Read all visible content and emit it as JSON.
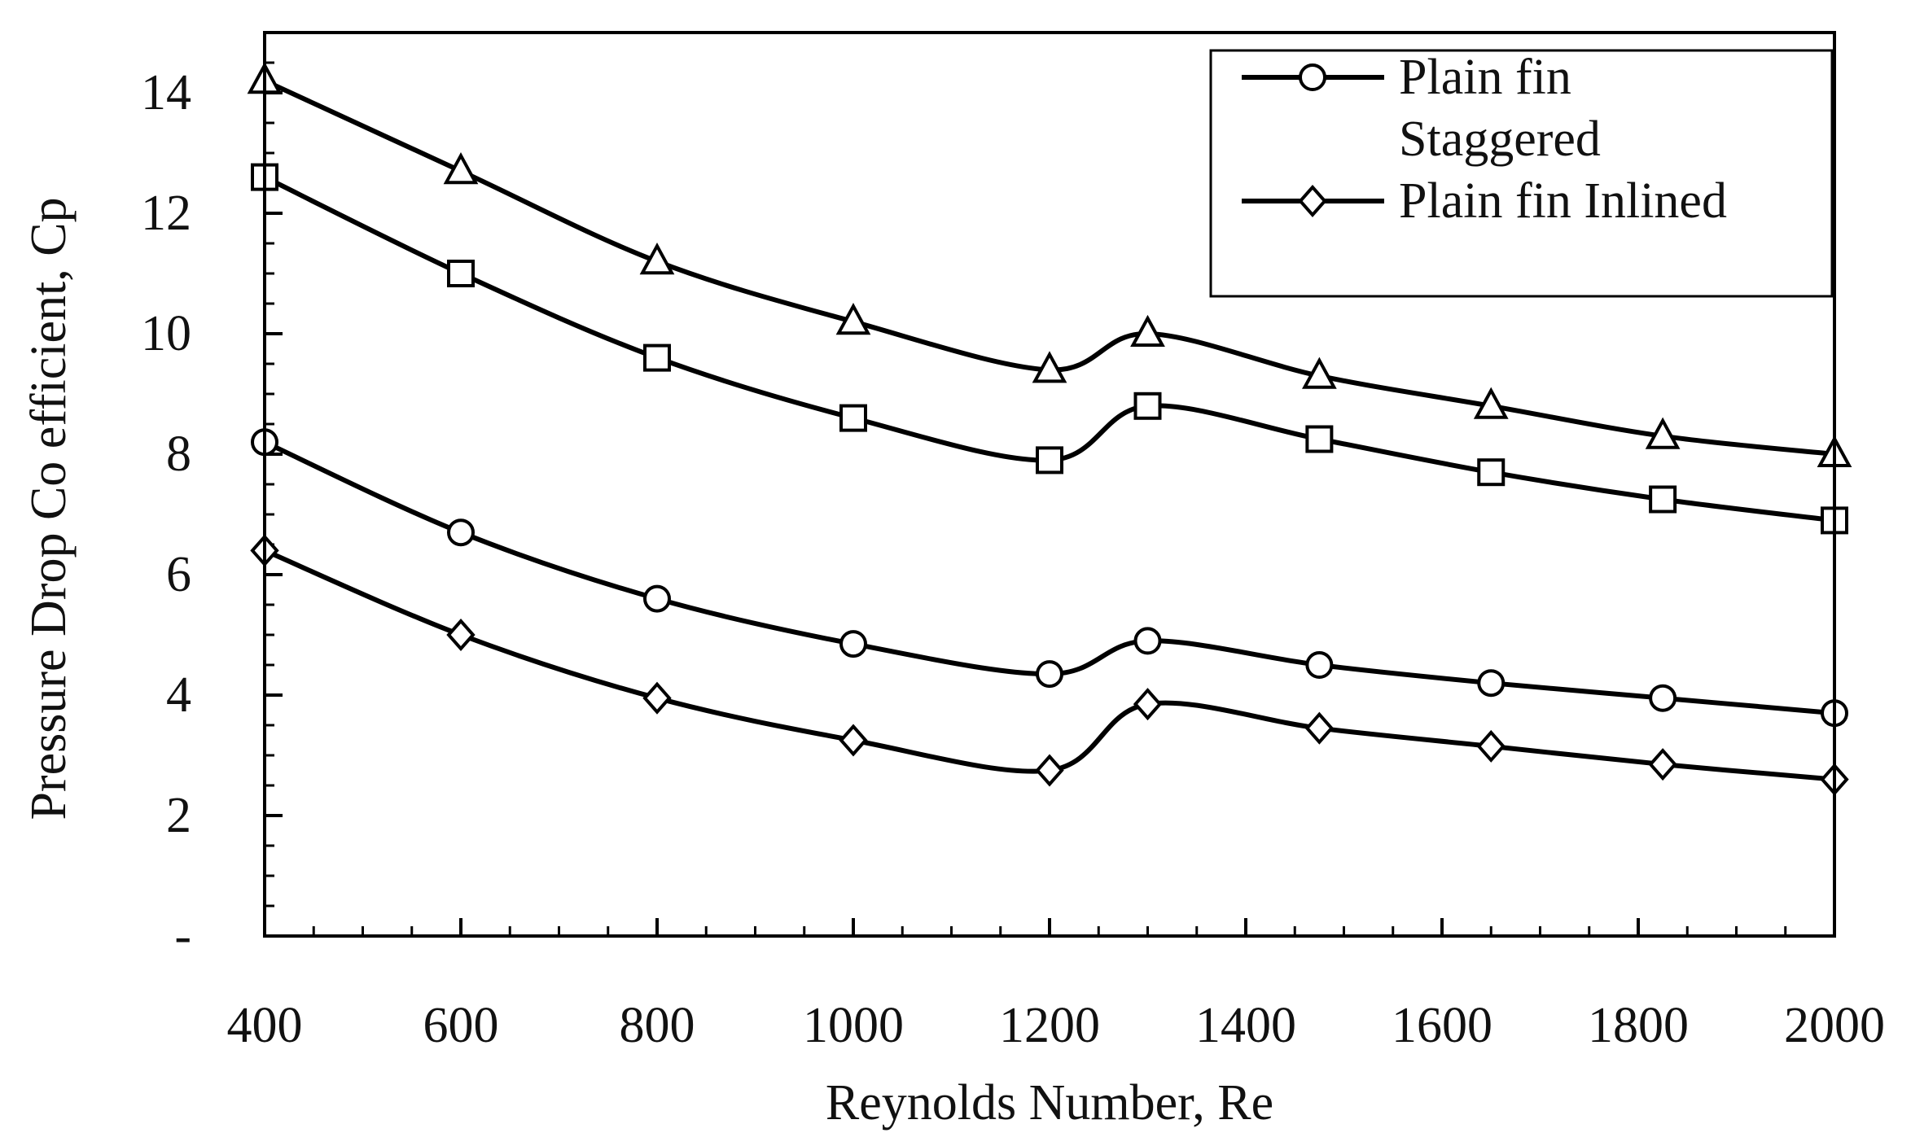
{
  "chart_data": {
    "type": "line",
    "title": "",
    "xlabel": "Reynolds Number, Re",
    "ylabel": "Pressure Drop Co efficient, Cp",
    "xlim": [
      400,
      2000
    ],
    "ylim": [
      0,
      15
    ],
    "grid": false,
    "legend_position": "top-right",
    "x_ticks": [
      400,
      600,
      800,
      1000,
      1200,
      1400,
      1600,
      1800,
      2000
    ],
    "x_tick_labels": [
      "400",
      "600",
      "800",
      "1000",
      "1200",
      "1400",
      "1600",
      "1800",
      "2000"
    ],
    "y_ticks": [
      0,
      2,
      4,
      6,
      8,
      10,
      12,
      14
    ],
    "y_tick_labels": [
      "-",
      "2",
      "4",
      "6",
      "8",
      "10",
      "12",
      "14"
    ],
    "x": [
      400,
      600,
      800,
      1000,
      1200,
      1300,
      1475,
      1650,
      1825,
      2000
    ],
    "series": [
      {
        "name": "",
        "marker": "triangle",
        "values": [
          14.2,
          12.7,
          11.2,
          10.2,
          9.4,
          10.0,
          9.3,
          8.8,
          8.3,
          8.0
        ]
      },
      {
        "name": "",
        "marker": "square",
        "values": [
          12.6,
          11.0,
          9.6,
          8.6,
          7.9,
          8.8,
          8.25,
          7.7,
          7.25,
          6.9
        ]
      },
      {
        "name": "Plain fin Staggered",
        "legend_lines": [
          "Plain fin",
          "Staggered"
        ],
        "marker": "circle",
        "values": [
          8.2,
          6.7,
          5.6,
          4.85,
          4.35,
          4.9,
          4.5,
          4.2,
          3.95,
          3.7
        ]
      },
      {
        "name": "Plain fin Inlined",
        "legend_lines": [
          "Plain fin Inlined"
        ],
        "marker": "diamond",
        "values": [
          6.4,
          5.0,
          3.95,
          3.25,
          2.75,
          3.85,
          3.45,
          3.15,
          2.85,
          2.6
        ]
      }
    ]
  }
}
